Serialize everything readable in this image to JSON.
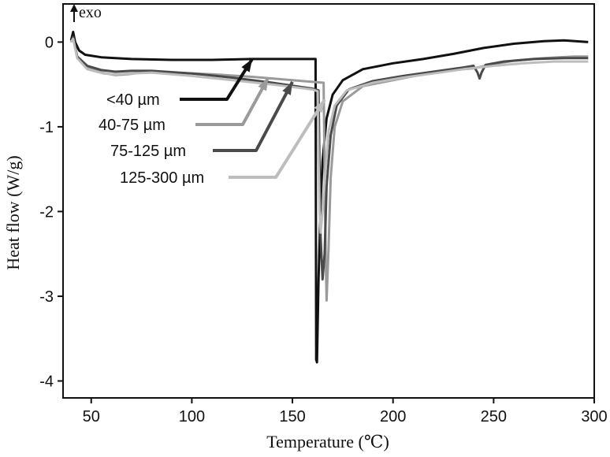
{
  "chart_data": {
    "type": "line",
    "xlabel": "Temperature (℃)",
    "ylabel": "Heat flow (W/g)",
    "corner_label": "exo",
    "xlim": [
      36,
      300
    ],
    "ylim": [
      -4.2,
      0.45
    ],
    "xticks": [
      50,
      100,
      150,
      200,
      250,
      300
    ],
    "xtick_labels": [
      "50",
      "100",
      "150",
      "200",
      "250",
      "300"
    ],
    "yticks": [
      0,
      -1,
      -2,
      -3,
      -4
    ],
    "ytick_labels": [
      "0",
      "-1",
      "-2",
      "-3",
      "-4"
    ],
    "grid": false,
    "legend": "annotations with arrows, left-center",
    "series": [
      {
        "name": "<40 µm",
        "color": "#111111",
        "points": [
          [
            40,
            0.02
          ],
          [
            41,
            0.12
          ],
          [
            42,
            0.0
          ],
          [
            44,
            -0.1
          ],
          [
            47,
            -0.15
          ],
          [
            55,
            -0.18
          ],
          [
            70,
            -0.2
          ],
          [
            90,
            -0.21
          ],
          [
            110,
            -0.21
          ],
          [
            130,
            -0.2
          ],
          [
            150,
            -0.2
          ],
          [
            161.5,
            -0.2
          ],
          [
            161.8,
            -3.75
          ],
          [
            162.2,
            -3.78
          ],
          [
            163,
            -2.8
          ],
          [
            164,
            -1.9
          ],
          [
            165,
            -1.4
          ],
          [
            167,
            -0.9
          ],
          [
            170,
            -0.62
          ],
          [
            175,
            -0.45
          ],
          [
            185,
            -0.32
          ],
          [
            200,
            -0.25
          ],
          [
            215,
            -0.2
          ],
          [
            230,
            -0.14
          ],
          [
            245,
            -0.07
          ],
          [
            260,
            -0.02
          ],
          [
            275,
            0.01
          ],
          [
            285,
            0.02
          ],
          [
            297,
            0.0
          ]
        ]
      },
      {
        "name": "40-75 µm",
        "color": "#9a9a9a",
        "points": [
          [
            40,
            0.0
          ],
          [
            41,
            0.05
          ],
          [
            43,
            -0.18
          ],
          [
            48,
            -0.3
          ],
          [
            55,
            -0.36
          ],
          [
            62,
            -0.39
          ],
          [
            68,
            -0.38
          ],
          [
            75,
            -0.36
          ],
          [
            90,
            -0.36
          ],
          [
            110,
            -0.38
          ],
          [
            130,
            -0.41
          ],
          [
            150,
            -0.45
          ],
          [
            165.5,
            -0.48
          ],
          [
            166,
            -1.5
          ],
          [
            166.5,
            -2.5
          ],
          [
            167,
            -3.05
          ],
          [
            168,
            -2.4
          ],
          [
            169,
            -1.6
          ],
          [
            171,
            -1.0
          ],
          [
            175,
            -0.7
          ],
          [
            185,
            -0.52
          ],
          [
            200,
            -0.45
          ],
          [
            215,
            -0.38
          ],
          [
            230,
            -0.33
          ],
          [
            240,
            -0.31
          ],
          [
            250,
            -0.26
          ],
          [
            260,
            -0.22
          ],
          [
            275,
            -0.19
          ],
          [
            290,
            -0.17
          ],
          [
            297,
            -0.17
          ]
        ]
      },
      {
        "name": "75-125 µm",
        "color": "#4a4a4a",
        "points": [
          [
            40,
            0.0
          ],
          [
            41,
            0.06
          ],
          [
            43,
            -0.17
          ],
          [
            48,
            -0.28
          ],
          [
            55,
            -0.33
          ],
          [
            62,
            -0.35
          ],
          [
            70,
            -0.34
          ],
          [
            80,
            -0.34
          ],
          [
            100,
            -0.37
          ],
          [
            120,
            -0.42
          ],
          [
            140,
            -0.48
          ],
          [
            160,
            -0.55
          ],
          [
            163,
            -0.57
          ],
          [
            163.5,
            -1.5
          ],
          [
            164,
            -2.3
          ],
          [
            165,
            -2.8
          ],
          [
            166,
            -2.5
          ],
          [
            167,
            -1.7
          ],
          [
            169,
            -1.1
          ],
          [
            172,
            -0.75
          ],
          [
            178,
            -0.56
          ],
          [
            190,
            -0.46
          ],
          [
            205,
            -0.4
          ],
          [
            220,
            -0.35
          ],
          [
            235,
            -0.3
          ],
          [
            240,
            -0.28
          ],
          [
            242,
            -0.36
          ],
          [
            243,
            -0.43
          ],
          [
            244,
            -0.36
          ],
          [
            246,
            -0.27
          ],
          [
            255,
            -0.23
          ],
          [
            270,
            -0.2
          ],
          [
            285,
            -0.19
          ],
          [
            297,
            -0.19
          ]
        ]
      },
      {
        "name": "125-300 µm",
        "color": "#bdbdbd",
        "points": [
          [
            40,
            0.0
          ],
          [
            41,
            0.04
          ],
          [
            43,
            -0.19
          ],
          [
            48,
            -0.32
          ],
          [
            56,
            -0.37
          ],
          [
            62,
            -0.38
          ],
          [
            70,
            -0.37
          ],
          [
            80,
            -0.36
          ],
          [
            100,
            -0.4
          ],
          [
            120,
            -0.45
          ],
          [
            140,
            -0.5
          ],
          [
            160,
            -0.56
          ],
          [
            162.5,
            -0.58
          ],
          [
            163,
            -1.4
          ],
          [
            163.5,
            -2.0
          ],
          [
            164,
            -2.25
          ],
          [
            165,
            -2.0
          ],
          [
            166.5,
            -1.5
          ],
          [
            168,
            -1.05
          ],
          [
            171,
            -0.75
          ],
          [
            177,
            -0.57
          ],
          [
            190,
            -0.48
          ],
          [
            205,
            -0.42
          ],
          [
            220,
            -0.37
          ],
          [
            235,
            -0.32
          ],
          [
            250,
            -0.28
          ],
          [
            265,
            -0.25
          ],
          [
            280,
            -0.23
          ],
          [
            297,
            -0.23
          ]
        ]
      }
    ],
    "annotations": [
      {
        "text": "<40 µm",
        "series": 0,
        "point_to": [
          130,
          -0.2
        ]
      },
      {
        "text": "40-75 µm",
        "series": 1,
        "point_to": [
          138,
          -0.42
        ]
      },
      {
        "text": "75-125 µm",
        "series": 2,
        "point_to": [
          150,
          -0.47
        ]
      },
      {
        "text": "125-300 µm",
        "series": 3,
        "point_to": [
          166,
          -0.68
        ]
      }
    ]
  }
}
